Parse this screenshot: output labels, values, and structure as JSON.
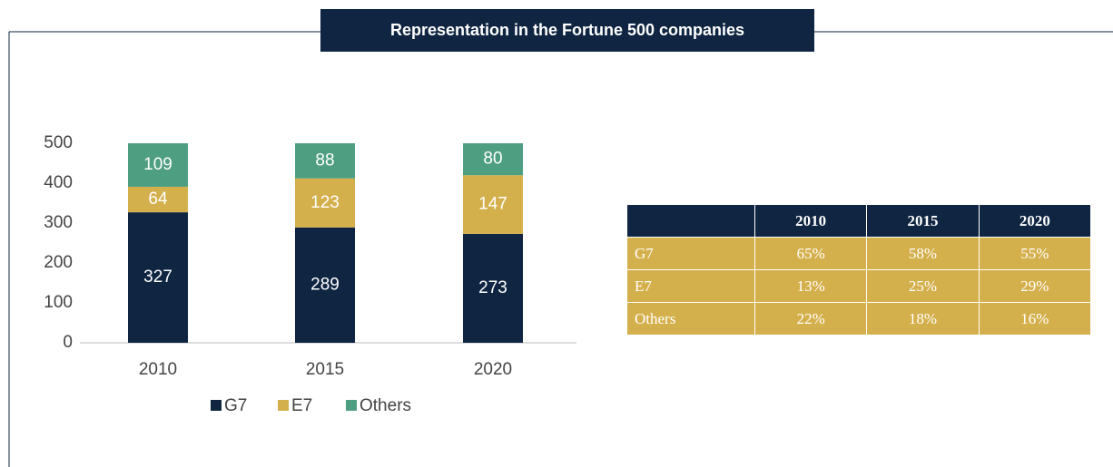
{
  "chart_data": {
    "type": "bar",
    "stacked": true,
    "title": "Representation in the Fortune 500 companies",
    "categories": [
      "2010",
      "2015",
      "2020"
    ],
    "series": [
      {
        "name": "G7",
        "color": "#0f2541",
        "values": [
          327,
          289,
          273
        ]
      },
      {
        "name": "E7",
        "color": "#d4b04c",
        "values": [
          64,
          123,
          147
        ]
      },
      {
        "name": "Others",
        "color": "#4e9e82",
        "values": [
          109,
          88,
          80
        ]
      }
    ],
    "ylim": [
      0,
      500
    ],
    "yticks": [
      0,
      100,
      200,
      300,
      400,
      500
    ],
    "grid": false,
    "legend": "bottom"
  },
  "table": {
    "columns": [
      "2010",
      "2015",
      "2020"
    ],
    "rows": [
      [
        "G7",
        "65%",
        "58%",
        "55%"
      ],
      [
        "E7",
        "13%",
        "25%",
        "29%"
      ],
      [
        "Others",
        "22%",
        "18%",
        "16%"
      ]
    ]
  }
}
